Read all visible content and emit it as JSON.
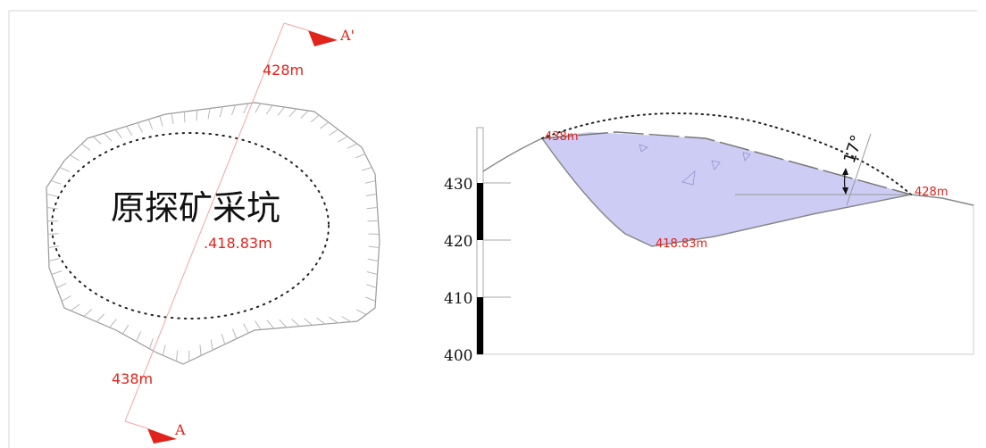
{
  "plan_view": {
    "title": "原探矿采坑",
    "center_elevation": ".418.83m",
    "top_elevation": "428m",
    "bottom_elevation": "438m",
    "section_start": "A",
    "section_end": "A'"
  },
  "section_view": {
    "peak_elevation": "438m",
    "bottom_elevation": "418.83m",
    "right_elevation": "428m",
    "slope_angle": "17°",
    "scale_labels": [
      "430",
      "420",
      "410",
      "400"
    ]
  },
  "colors": {
    "annotation_red": "#e0241b",
    "pit_fill": "#ccccf5",
    "outline_gray": "#999999"
  }
}
